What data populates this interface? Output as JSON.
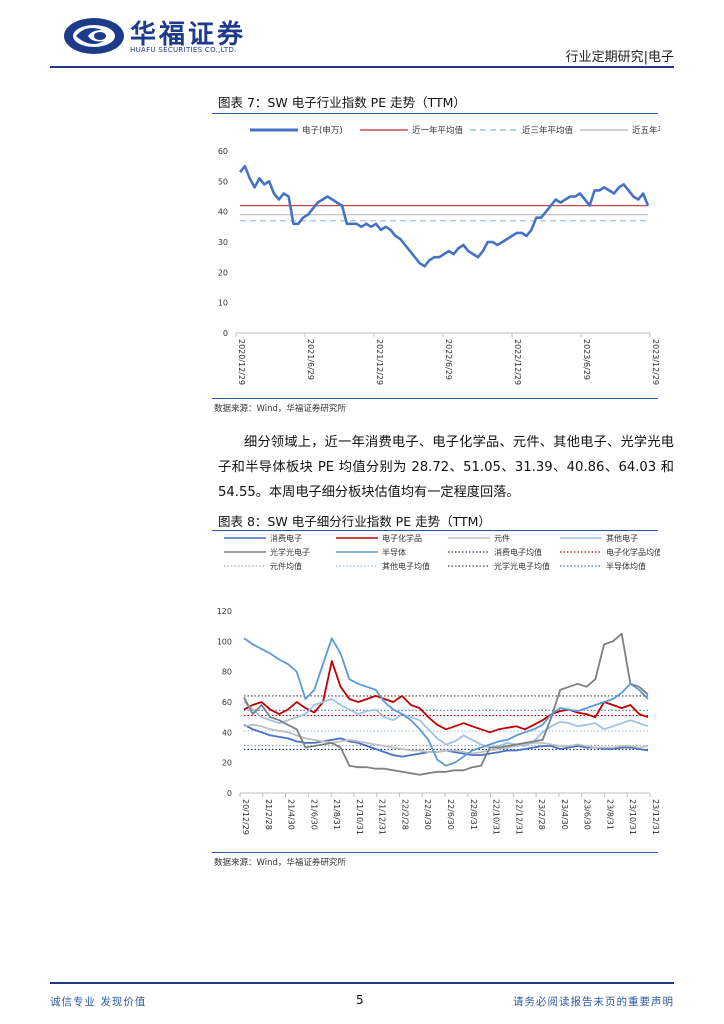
{
  "header": {
    "company_cn": "华福证券",
    "company_en": "HUAFU SECURITIES CO.,LTD.",
    "report_type": "行业定期研究|电子"
  },
  "figure7": {
    "title": "图表 7：SW 电子行业指数 PE 走势（TTM）",
    "source": "数据来源：Wind，华福证券研究所"
  },
  "paragraph": "细分领域上，近一年消费电子、电子化学品、元件、其他电子、光学光电子和半导体板块 PE 均值分别为 28.72、51.05、31.39、40.86、64.03 和 54.55。本周电子细分板块估值均有一定程度回落。",
  "figure8": {
    "title": "图表 8：SW 电子细分行业指数 PE 走势（TTM）",
    "source": "数据来源：Wind，华福证券研究所"
  },
  "footer": {
    "left": "诚信专业  发现价值",
    "page": "5",
    "right": "请务必阅读报告末页的重要声明"
  },
  "chart_data": [
    {
      "type": "line",
      "ylim": [
        0,
        60
      ],
      "yticks": [
        0,
        10,
        20,
        30,
        40,
        50,
        60
      ],
      "x_ticks": [
        "2020/12/29",
        "2021/6/29",
        "2021/12/29",
        "2022/6/29",
        "2022/12/29",
        "2023/6/29",
        "2023/12/29"
      ],
      "legend_position": "top",
      "series": [
        {
          "name": "电子(申万)",
          "color": "#4472c4",
          "style": "solid-thick",
          "values": [
            53,
            55,
            51,
            48,
            51,
            49,
            50,
            46,
            44,
            46,
            45,
            36,
            36,
            38,
            39,
            41,
            43,
            44,
            45,
            44,
            43,
            42,
            36,
            36,
            36,
            35,
            36,
            35,
            36,
            34,
            35,
            34,
            32,
            31,
            29,
            27,
            25,
            23,
            22,
            24,
            25,
            25,
            26,
            27,
            26,
            28,
            29,
            27,
            26,
            25,
            27,
            30,
            30,
            29,
            30,
            31,
            32,
            33,
            33,
            32,
            34,
            38,
            38,
            40,
            42,
            44,
            43,
            44,
            45,
            45,
            46,
            44,
            42,
            47,
            47,
            48,
            47,
            46,
            48,
            49,
            47,
            45,
            44,
            46,
            42
          ]
        },
        {
          "name": "近一年平均值",
          "color": "#c0504d",
          "style": "solid",
          "values": [
            42
          ]
        },
        {
          "name": "近三年平均值",
          "color": "#9dc3e6",
          "style": "dashed",
          "values": [
            37
          ]
        },
        {
          "name": "近五年平均值",
          "color": "#bfbfbf",
          "style": "solid",
          "values": [
            39
          ]
        }
      ]
    },
    {
      "type": "line",
      "ylim": [
        0,
        120
      ],
      "yticks": [
        0,
        20,
        40,
        60,
        80,
        100,
        120
      ],
      "x_ticks": [
        "20/12/29",
        "21/2/28",
        "21/4/30",
        "21/6/30",
        "21/8/31",
        "21/10/31",
        "21/12/31",
        "22/2/28",
        "22/4/30",
        "22/6/30",
        "22/8/31",
        "22/10/31",
        "22/12/31",
        "23/2/28",
        "23/4/30",
        "23/6/30",
        "23/8/31",
        "23/10/31",
        "23/12/31"
      ],
      "legend_position": "top",
      "series": [
        {
          "name": "消费电子",
          "color": "#4472c4",
          "style": "solid",
          "values": [
            45,
            42,
            40,
            38,
            37,
            36,
            34,
            33,
            33,
            34,
            35,
            36,
            34,
            33,
            31,
            29,
            27,
            25,
            24,
            25,
            26,
            27,
            27,
            28,
            27,
            26,
            25,
            25,
            26,
            27,
            28,
            28,
            29,
            30,
            31,
            31,
            29,
            30,
            31,
            30,
            30,
            29,
            29,
            30,
            30,
            29,
            28
          ]
        },
        {
          "name": "电子化学品",
          "color": "#c00000",
          "style": "solid",
          "values": [
            55,
            58,
            60,
            55,
            52,
            55,
            60,
            56,
            53,
            60,
            87,
            70,
            62,
            60,
            62,
            64,
            62,
            60,
            64,
            58,
            56,
            50,
            45,
            42,
            44,
            46,
            44,
            42,
            40,
            42,
            43,
            44,
            42,
            45,
            48,
            52,
            54,
            55,
            53,
            52,
            50,
            60,
            58,
            56,
            58,
            52,
            50
          ]
        },
        {
          "name": "元件",
          "color": "#bfbfbf",
          "style": "solid",
          "values": [
            44,
            45,
            44,
            42,
            41,
            40,
            38,
            36,
            35,
            34,
            33,
            34,
            35,
            34,
            33,
            32,
            31,
            30,
            29,
            28,
            28,
            27,
            27,
            28,
            28,
            27,
            26,
            27,
            28,
            29,
            30,
            31,
            32,
            33,
            33,
            32,
            31,
            31,
            32,
            31,
            30,
            30,
            30,
            31,
            31,
            30,
            31
          ]
        },
        {
          "name": "其他电子",
          "color": "#9dc3e6",
          "style": "solid",
          "values": [
            60,
            55,
            50,
            48,
            46,
            48,
            50,
            52,
            58,
            60,
            62,
            58,
            55,
            52,
            54,
            55,
            50,
            48,
            52,
            50,
            48,
            42,
            36,
            32,
            34,
            38,
            35,
            32,
            30,
            31,
            33,
            32,
            31,
            34,
            40,
            44,
            47,
            46,
            44,
            45,
            46,
            42,
            44,
            46,
            48,
            46,
            44
          ]
        },
        {
          "name": "光学光电子",
          "color": "#7f7f7f",
          "style": "solid",
          "values": [
            63,
            52,
            58,
            50,
            48,
            45,
            42,
            30,
            31,
            32,
            33,
            30,
            18,
            17,
            17,
            16,
            16,
            15,
            14,
            13,
            12,
            13,
            14,
            14,
            15,
            15,
            17,
            18,
            30,
            30,
            31,
            32,
            33,
            34,
            35,
            50,
            68,
            70,
            72,
            70,
            75,
            98,
            100,
            105,
            72,
            70,
            65
          ]
        },
        {
          "name": "半导体",
          "color": "#5b9bd5",
          "style": "solid",
          "values": [
            102,
            98,
            95,
            92,
            88,
            85,
            80,
            62,
            68,
            85,
            102,
            92,
            75,
            72,
            70,
            68,
            60,
            55,
            52,
            48,
            42,
            35,
            22,
            18,
            20,
            24,
            28,
            30,
            32,
            34,
            35,
            38,
            40,
            42,
            45,
            52,
            56,
            55,
            54,
            56,
            58,
            60,
            62,
            66,
            72,
            68,
            62
          ]
        },
        {
          "name": "消费电子均值",
          "color": "#1f3864",
          "style": "dotted",
          "values": [
            28.72
          ]
        },
        {
          "name": "电子化学品均值",
          "color": "#c00000",
          "style": "dotted",
          "values": [
            51.05
          ]
        },
        {
          "name": "元件均值",
          "color": "#a6a6a6",
          "style": "dotted",
          "values": [
            31.39
          ]
        },
        {
          "name": "其他电子均值",
          "color": "#9dc3e6",
          "style": "dotted",
          "values": [
            40.86
          ]
        },
        {
          "name": "光学光电子均值",
          "color": "#404040",
          "style": "dotted",
          "values": [
            64.03
          ]
        },
        {
          "name": "半导体均值",
          "color": "#4472c4",
          "style": "dotted",
          "values": [
            54.55
          ]
        }
      ]
    }
  ]
}
